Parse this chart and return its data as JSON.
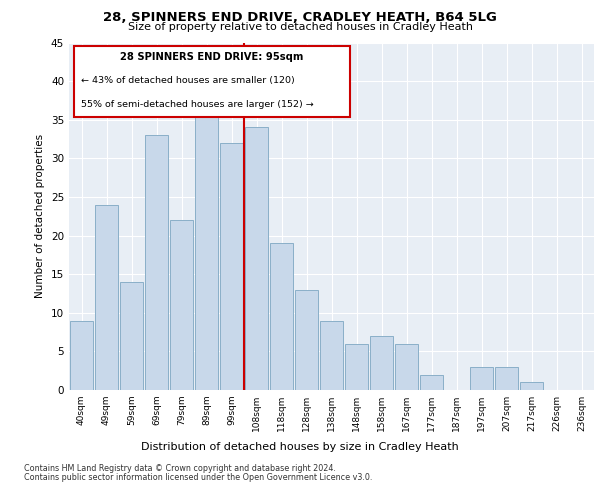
{
  "title1": "28, SPINNERS END DRIVE, CRADLEY HEATH, B64 5LG",
  "title2": "Size of property relative to detached houses in Cradley Heath",
  "xlabel": "Distribution of detached houses by size in Cradley Heath",
  "ylabel": "Number of detached properties",
  "categories": [
    "40sqm",
    "49sqm",
    "59sqm",
    "69sqm",
    "79sqm",
    "89sqm",
    "99sqm",
    "108sqm",
    "118sqm",
    "128sqm",
    "138sqm",
    "148sqm",
    "158sqm",
    "167sqm",
    "177sqm",
    "187sqm",
    "197sqm",
    "207sqm",
    "217sqm",
    "226sqm",
    "236sqm"
  ],
  "values": [
    9,
    24,
    14,
    33,
    22,
    36,
    32,
    34,
    19,
    13,
    9,
    6,
    7,
    6,
    2,
    0,
    3,
    3,
    1,
    0,
    0
  ],
  "bar_color": "#c8d8ea",
  "bar_edge_color": "#8aafc8",
  "red_line_label": "28 SPINNERS END DRIVE: 95sqm",
  "annotation_line1": "← 43% of detached houses are smaller (120)",
  "annotation_line2": "55% of semi-detached houses are larger (152) →",
  "vline_color": "#cc0000",
  "annotation_box_edge": "#cc0000",
  "vline_x": 6.5,
  "ylim": [
    0,
    45
  ],
  "yticks": [
    0,
    5,
    10,
    15,
    20,
    25,
    30,
    35,
    40,
    45
  ],
  "bg_color": "#e8eef5",
  "footer1": "Contains HM Land Registry data © Crown copyright and database right 2024.",
  "footer2": "Contains public sector information licensed under the Open Government Licence v3.0."
}
